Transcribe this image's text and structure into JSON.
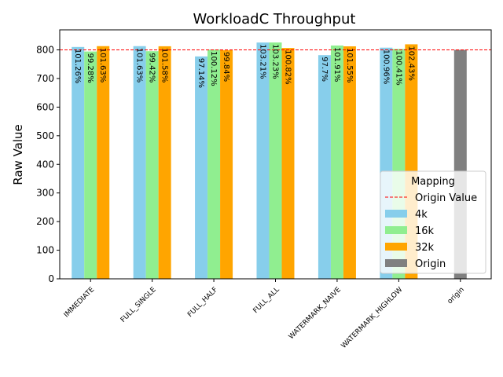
{
  "chart_data": {
    "type": "bar",
    "title": "WorkloadC Throughput",
    "xlabel": "",
    "ylabel": "Raw Value",
    "ylim": [
      0,
      870
    ],
    "yticks": [
      0,
      100,
      200,
      300,
      400,
      500,
      600,
      700,
      800
    ],
    "categories": [
      "IMMEDIATE",
      "FULL_SINGLE",
      "FULL_HALF",
      "FULL_ALL",
      "WATERMARK_NAIVE",
      "WATERMARK_HIGHLOW",
      "origin"
    ],
    "origin_value": 800,
    "series": [
      {
        "name": "4k",
        "color": "#87ceeb",
        "values": [
          810.08,
          813.04,
          777.12,
          825.68,
          781.6,
          807.68,
          null
        ],
        "labels": [
          "101.26%",
          "101.63%",
          "97.14%",
          "103.21%",
          "97.7%",
          "100.96%",
          ""
        ]
      },
      {
        "name": "16k",
        "color": "#90ee90",
        "values": [
          794.24,
          795.36,
          800.96,
          825.84,
          815.28,
          803.28,
          null
        ],
        "labels": [
          "99.28%",
          "99.42%",
          "100.12%",
          "103.23%",
          "101.91%",
          "100.41%",
          ""
        ]
      },
      {
        "name": "32k",
        "color": "#ffa500",
        "values": [
          813.04,
          812.64,
          798.72,
          806.56,
          812.4,
          819.44,
          null
        ],
        "labels": [
          "101.63%",
          "101.58%",
          "99.84%",
          "100.82%",
          "101.55%",
          "102.43%",
          ""
        ]
      },
      {
        "name": "Origin",
        "color": "#808080",
        "values": [
          null,
          null,
          null,
          null,
          null,
          null,
          800
        ],
        "labels": [
          "",
          "",
          "",
          "",
          "",
          "",
          ""
        ]
      }
    ],
    "legend": {
      "title": "Mapping",
      "position": "lower-right",
      "line_entry": {
        "name": "Origin Value",
        "color": "#ff0000",
        "style": "dashed"
      }
    },
    "grid": false
  }
}
